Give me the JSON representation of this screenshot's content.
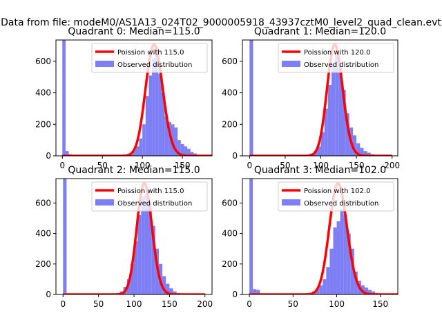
{
  "figure": {
    "suptitle": "Data from file: modeM0/AS1A13_024T02_9000005918_43937cztM0_level2_quad_clean.evt",
    "colors": {
      "line": "#ff0000",
      "bar": "#7f7ff5",
      "frame": "#000000"
    }
  },
  "chart_data": [
    {
      "type": "bar",
      "title": "Quadrant 0: Median=115.0",
      "xlim": [
        -8,
        187
      ],
      "ylim": [
        0,
        735
      ],
      "xticks": [
        0,
        50,
        100,
        150
      ],
      "yticks": [
        0,
        200,
        400,
        600
      ],
      "bin_width": 4,
      "hist": [
        [
          0,
          735
        ],
        [
          4,
          30
        ],
        [
          8,
          10
        ],
        [
          12,
          4
        ],
        [
          16,
          2
        ],
        [
          20,
          1
        ],
        [
          24,
          0
        ],
        [
          28,
          0
        ],
        [
          32,
          0
        ],
        [
          36,
          0
        ],
        [
          40,
          0
        ],
        [
          44,
          0
        ],
        [
          48,
          0
        ],
        [
          52,
          0
        ],
        [
          56,
          0
        ],
        [
          60,
          0
        ],
        [
          64,
          0
        ],
        [
          68,
          0
        ],
        [
          72,
          1
        ],
        [
          76,
          3
        ],
        [
          80,
          8
        ],
        [
          84,
          20
        ],
        [
          88,
          40
        ],
        [
          92,
          60
        ],
        [
          96,
          110
        ],
        [
          100,
          200
        ],
        [
          104,
          380
        ],
        [
          108,
          510
        ],
        [
          112,
          620
        ],
        [
          116,
          650
        ],
        [
          120,
          520
        ],
        [
          124,
          400
        ],
        [
          128,
          250
        ],
        [
          132,
          215
        ],
        [
          136,
          200
        ],
        [
          140,
          180
        ],
        [
          144,
          100
        ],
        [
          148,
          75
        ],
        [
          152,
          60
        ],
        [
          156,
          45
        ],
        [
          160,
          25
        ],
        [
          164,
          15
        ],
        [
          168,
          5
        ],
        [
          172,
          1
        ]
      ],
      "curve": {
        "mean": 115.0,
        "label": "Poission with 115.0"
      },
      "legend": [
        "Poission with 115.0",
        "Observed distribution"
      ]
    },
    {
      "type": "bar",
      "title": "Quadrant 1: Median=120.0",
      "xlim": [
        -10,
        208
      ],
      "ylim": [
        0,
        735
      ],
      "xticks": [
        0,
        50,
        100,
        150,
        200
      ],
      "yticks": [
        0,
        200,
        400,
        600
      ],
      "bin_width": 5,
      "hist": [
        [
          0,
          735
        ],
        [
          5,
          5
        ],
        [
          10,
          2
        ],
        [
          15,
          1
        ],
        [
          20,
          0
        ],
        [
          25,
          0
        ],
        [
          30,
          0
        ],
        [
          35,
          0
        ],
        [
          40,
          0
        ],
        [
          45,
          0
        ],
        [
          50,
          0
        ],
        [
          55,
          0
        ],
        [
          60,
          0
        ],
        [
          65,
          0
        ],
        [
          70,
          1
        ],
        [
          75,
          3
        ],
        [
          80,
          8
        ],
        [
          85,
          15
        ],
        [
          90,
          30
        ],
        [
          95,
          60
        ],
        [
          100,
          150
        ],
        [
          105,
          300
        ],
        [
          110,
          450
        ],
        [
          115,
          580
        ],
        [
          120,
          640
        ],
        [
          125,
          560
        ],
        [
          130,
          420
        ],
        [
          135,
          270
        ],
        [
          140,
          180
        ],
        [
          145,
          130
        ],
        [
          150,
          80
        ],
        [
          155,
          50
        ],
        [
          160,
          30
        ],
        [
          165,
          20
        ],
        [
          170,
          10
        ],
        [
          175,
          5
        ],
        [
          180,
          2
        ],
        [
          185,
          1
        ]
      ],
      "curve": {
        "mean": 120.0,
        "label": "Poission with 120.0"
      },
      "legend": [
        "Poission with 120.0",
        "Observed distribution"
      ]
    },
    {
      "type": "bar",
      "title": "Quadrant 2: Median=115.0",
      "xlim": [
        -10,
        210
      ],
      "ylim": [
        0,
        760
      ],
      "xticks": [
        0,
        50,
        100,
        150,
        200
      ],
      "yticks": [
        0,
        200,
        400,
        600
      ],
      "bin_width": 5,
      "hist": [
        [
          0,
          760
        ],
        [
          5,
          2
        ],
        [
          10,
          0
        ],
        [
          15,
          0
        ],
        [
          20,
          0
        ],
        [
          25,
          0
        ],
        [
          30,
          0
        ],
        [
          35,
          0
        ],
        [
          40,
          0
        ],
        [
          45,
          0
        ],
        [
          50,
          0
        ],
        [
          55,
          0
        ],
        [
          60,
          0
        ],
        [
          65,
          1
        ],
        [
          70,
          3
        ],
        [
          75,
          8
        ],
        [
          80,
          20
        ],
        [
          85,
          50
        ],
        [
          90,
          100
        ],
        [
          95,
          200
        ],
        [
          100,
          350
        ],
        [
          105,
          520
        ],
        [
          110,
          640
        ],
        [
          115,
          660
        ],
        [
          120,
          590
        ],
        [
          125,
          450
        ],
        [
          130,
          300
        ],
        [
          135,
          200
        ],
        [
          140,
          120
        ],
        [
          145,
          70
        ],
        [
          150,
          40
        ],
        [
          155,
          20
        ],
        [
          160,
          10
        ],
        [
          165,
          5
        ],
        [
          170,
          2
        ],
        [
          175,
          1
        ]
      ],
      "curve": {
        "mean": 115.0,
        "label": "Poission with 115.0"
      },
      "legend": [
        "Poission with 115.0",
        "Observed distribution"
      ]
    },
    {
      "type": "bar",
      "title": "Quadrant 3: Median=102.0",
      "xlim": [
        -8,
        170
      ],
      "ylim": [
        0,
        760
      ],
      "xticks": [
        0,
        50,
        100,
        150
      ],
      "yticks": [
        0,
        200,
        400,
        600
      ],
      "bin_width": 4,
      "hist": [
        [
          0,
          760
        ],
        [
          4,
          35
        ],
        [
          8,
          30
        ],
        [
          12,
          3
        ],
        [
          16,
          1
        ],
        [
          20,
          0
        ],
        [
          24,
          0
        ],
        [
          28,
          0
        ],
        [
          32,
          0
        ],
        [
          36,
          0
        ],
        [
          40,
          0
        ],
        [
          44,
          0
        ],
        [
          48,
          0
        ],
        [
          52,
          0
        ],
        [
          56,
          1
        ],
        [
          60,
          2
        ],
        [
          64,
          5
        ],
        [
          68,
          10
        ],
        [
          72,
          20
        ],
        [
          76,
          40
        ],
        [
          80,
          60
        ],
        [
          84,
          100
        ],
        [
          88,
          180
        ],
        [
          92,
          300
        ],
        [
          96,
          440
        ],
        [
          100,
          480
        ],
        [
          104,
          560
        ],
        [
          108,
          520
        ],
        [
          112,
          400
        ],
        [
          116,
          300
        ],
        [
          120,
          150
        ],
        [
          124,
          90
        ],
        [
          128,
          60
        ],
        [
          132,
          45
        ],
        [
          136,
          30
        ],
        [
          140,
          20
        ],
        [
          144,
          10
        ],
        [
          148,
          5
        ],
        [
          152,
          2
        ],
        [
          156,
          1
        ]
      ],
      "curve": {
        "mean": 102.0,
        "label": "Poission with 102.0"
      },
      "legend": [
        "Poission with 102.0",
        "Observed distribution"
      ]
    }
  ]
}
